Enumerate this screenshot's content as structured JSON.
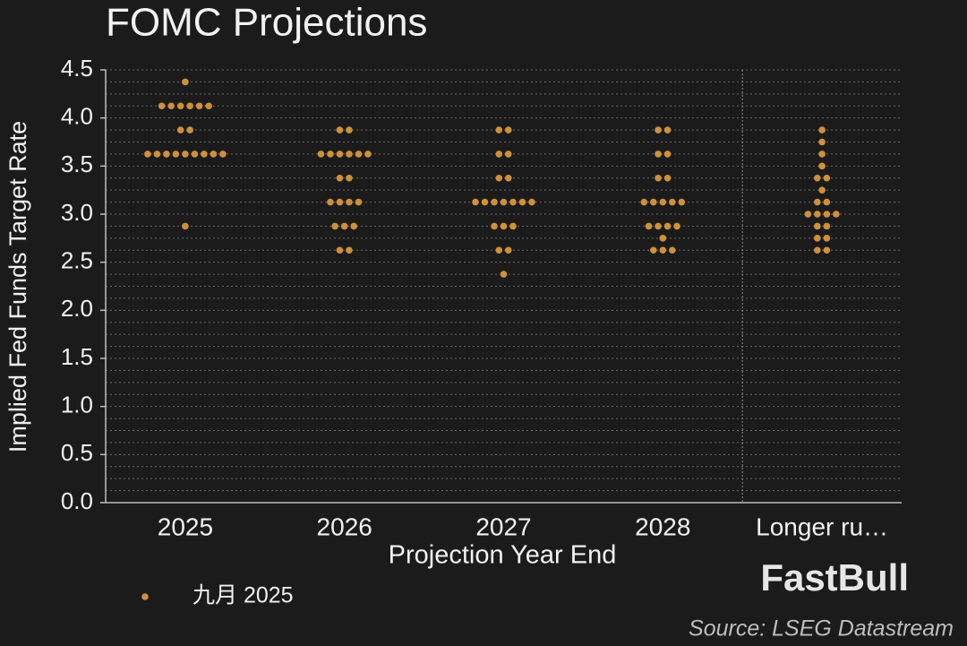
{
  "chart_data": {
    "type": "dot",
    "title": "FOMC Projections",
    "x_label": "Projection Year End",
    "y_label": "Implied Fed Funds Target Rate",
    "categories": [
      "2025",
      "2026",
      "2027",
      "2028",
      "Longer ru…"
    ],
    "series": [
      {
        "name": "九月 2025",
        "color": "#cf9039",
        "values": [
          [
            4.375,
            4.125,
            4.125,
            4.125,
            4.125,
            4.125,
            4.125,
            3.875,
            3.875,
            3.625,
            3.625,
            3.625,
            3.625,
            3.625,
            3.625,
            3.625,
            3.625,
            3.625,
            2.875
          ],
          [
            3.875,
            3.875,
            3.625,
            3.625,
            3.625,
            3.625,
            3.625,
            3.625,
            3.375,
            3.375,
            3.125,
            3.125,
            3.125,
            3.125,
            2.875,
            2.875,
            2.875,
            2.625,
            2.625
          ],
          [
            3.875,
            3.875,
            3.625,
            3.625,
            3.375,
            3.375,
            3.125,
            3.125,
            3.125,
            3.125,
            3.125,
            3.125,
            3.125,
            2.875,
            2.875,
            2.875,
            2.625,
            2.625,
            2.375
          ],
          [
            3.875,
            3.875,
            3.625,
            3.625,
            3.375,
            3.375,
            3.125,
            3.125,
            3.125,
            3.125,
            3.125,
            2.875,
            2.875,
            2.875,
            2.875,
            2.75,
            2.625,
            2.625,
            2.625
          ],
          [
            3.875,
            3.75,
            3.625,
            3.5,
            3.375,
            3.375,
            3.25,
            3.125,
            3.125,
            3.0,
            3.0,
            3.0,
            3.0,
            2.875,
            2.875,
            2.75,
            2.75,
            2.625,
            2.625
          ]
        ]
      }
    ],
    "ylim": [
      0,
      4.5
    ],
    "yticks": [
      {
        "value": 0,
        "label": "0.0"
      },
      0.5,
      {
        "value": 1,
        "label": "1.0"
      },
      1.5,
      {
        "value": 2,
        "label": "2.0"
      },
      2.5,
      {
        "value": 3,
        "label": "3.0"
      },
      3.5,
      {
        "value": 4,
        "label": "4.0"
      },
      4.5
    ],
    "grid": true,
    "watermark": "FastBull",
    "source": "Source: LSEG Datastream"
  }
}
